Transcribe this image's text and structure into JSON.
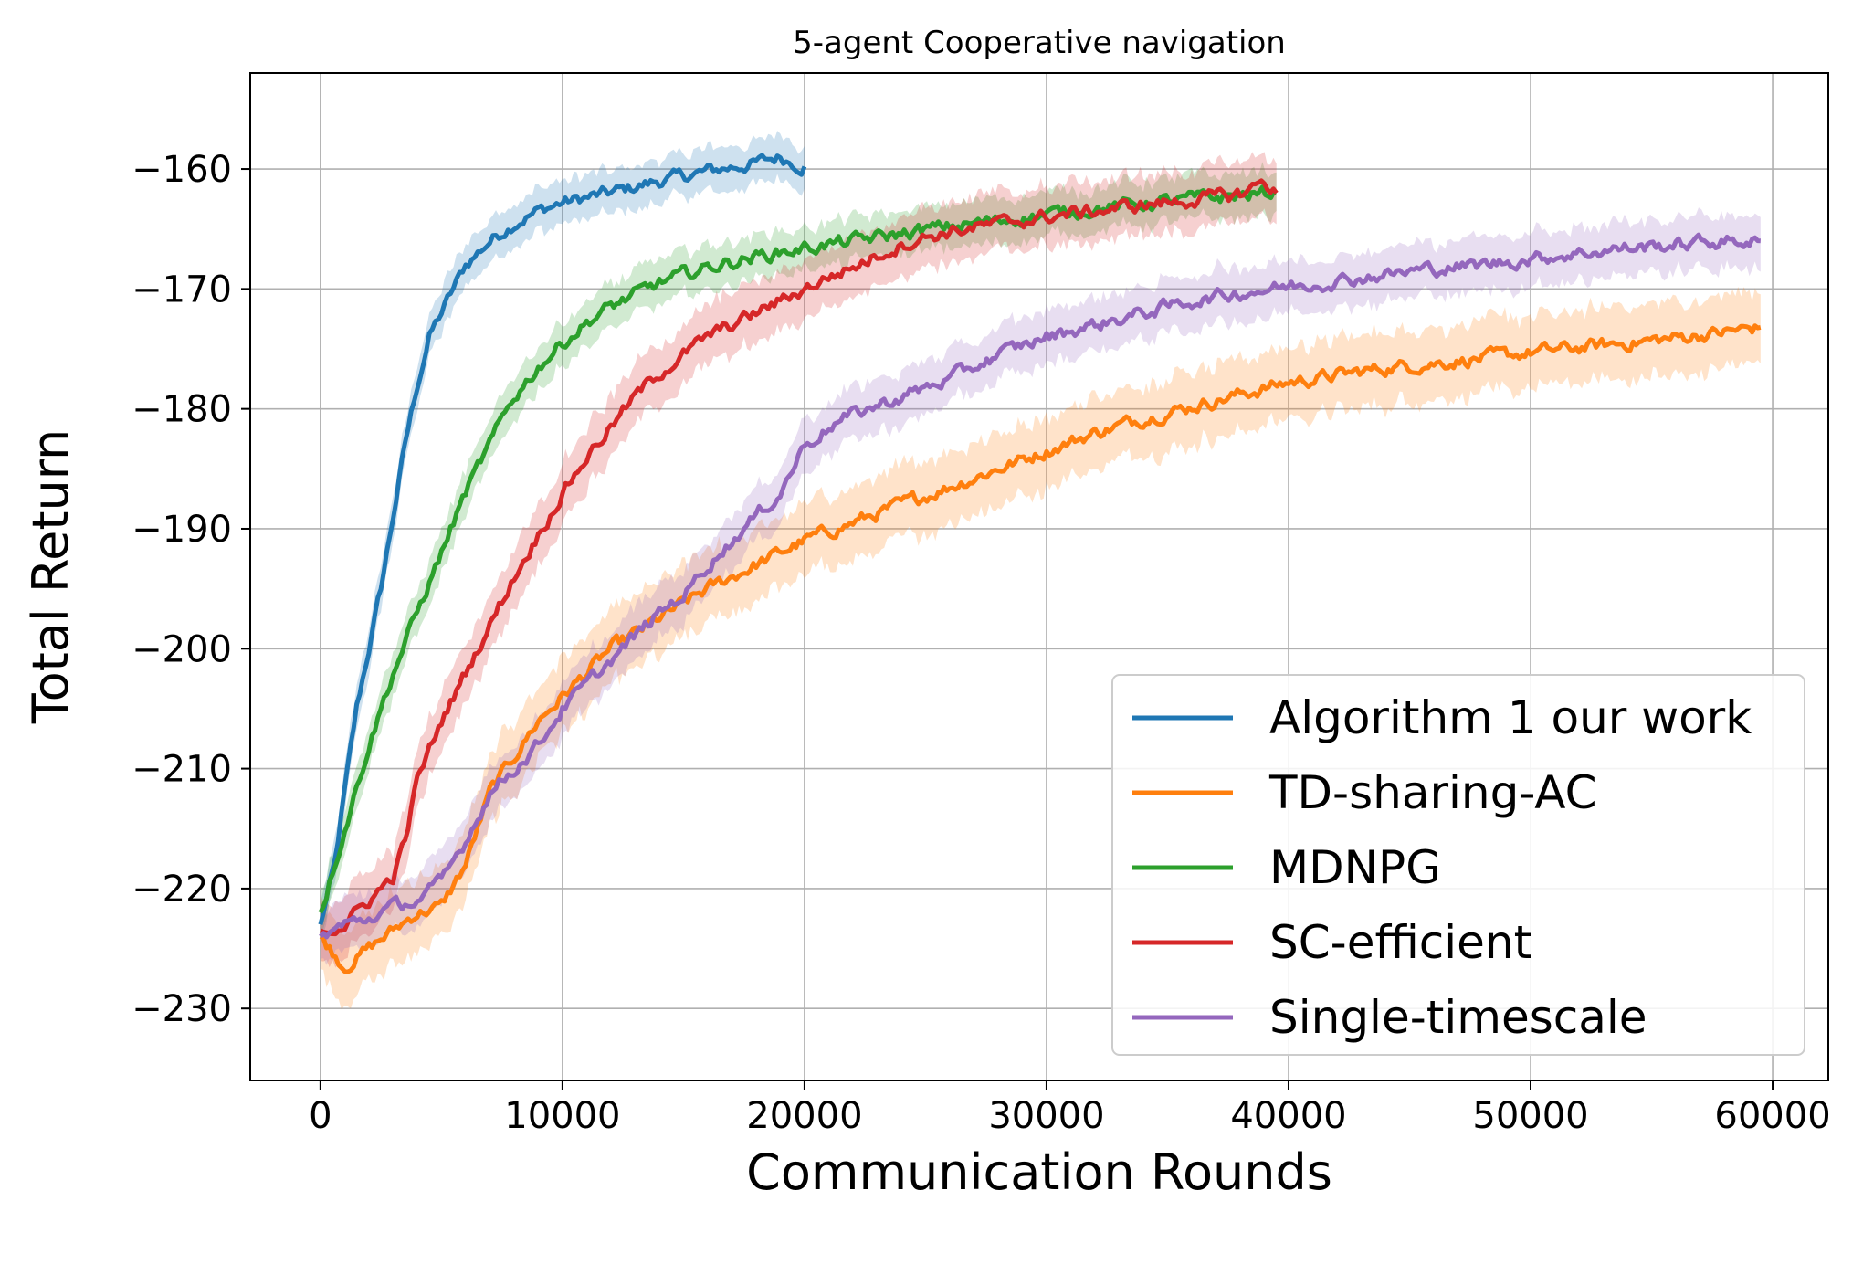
{
  "chart_data": {
    "type": "line",
    "title": "5-agent Cooperative navigation",
    "xlabel": "Communication Rounds",
    "ylabel": "Total Return",
    "xlim": [
      -2900,
      62300
    ],
    "ylim": [
      -236,
      -152
    ],
    "xticks": [
      0,
      10000,
      20000,
      30000,
      40000,
      50000,
      60000
    ],
    "xtick_labels": [
      "0",
      "10000",
      "20000",
      "30000",
      "40000",
      "50000",
      "60000"
    ],
    "yticks": [
      -230,
      -220,
      -210,
      -200,
      -190,
      -180,
      -170,
      -160
    ],
    "ytick_labels": [
      "−230",
      "−220",
      "−210",
      "−200",
      "−190",
      "−180",
      "−170",
      "−160"
    ],
    "grid": true,
    "legend_position": "lower-right",
    "series": [
      {
        "name": "Algorithm 1 our work",
        "color": "#1f77b4",
        "band": 1.8,
        "points": [
          [
            0,
            -223
          ],
          [
            600,
            -218
          ],
          [
            1000,
            -212
          ],
          [
            1500,
            -205
          ],
          [
            2000,
            -200
          ],
          [
            2500,
            -195
          ],
          [
            3000,
            -189
          ],
          [
            3500,
            -183
          ],
          [
            4000,
            -178
          ],
          [
            4500,
            -174
          ],
          [
            5000,
            -172
          ],
          [
            6000,
            -168
          ],
          [
            7000,
            -166
          ],
          [
            8000,
            -164.5
          ],
          [
            9000,
            -163.5
          ],
          [
            10000,
            -162.8
          ],
          [
            12000,
            -162
          ],
          [
            14000,
            -161
          ],
          [
            16000,
            -160.2
          ],
          [
            18000,
            -159.5
          ],
          [
            19000,
            -159
          ],
          [
            20000,
            -159.8
          ]
        ]
      },
      {
        "name": "TD-sharing-AC",
        "color": "#ff7f0e",
        "band": 3,
        "points": [
          [
            0,
            -224
          ],
          [
            1000,
            -226.5
          ],
          [
            2000,
            -225
          ],
          [
            3000,
            -223.5
          ],
          [
            4000,
            -222
          ],
          [
            5000,
            -221.5
          ],
          [
            6000,
            -218
          ],
          [
            7000,
            -212
          ],
          [
            8000,
            -209
          ],
          [
            9000,
            -206
          ],
          [
            10000,
            -204
          ],
          [
            12000,
            -200
          ],
          [
            14000,
            -197.5
          ],
          [
            16000,
            -195
          ],
          [
            18000,
            -193
          ],
          [
            20000,
            -191
          ],
          [
            22000,
            -189.5
          ],
          [
            24000,
            -188
          ],
          [
            26000,
            -186.5
          ],
          [
            28000,
            -185
          ],
          [
            30000,
            -183.5
          ],
          [
            32000,
            -182
          ],
          [
            34000,
            -180.8
          ],
          [
            36000,
            -179.8
          ],
          [
            38000,
            -178.8
          ],
          [
            40000,
            -177.8
          ],
          [
            42000,
            -177.2
          ],
          [
            44000,
            -176.6
          ],
          [
            46000,
            -176.2
          ],
          [
            48000,
            -175.8
          ],
          [
            50000,
            -175.3
          ],
          [
            52000,
            -174.9
          ],
          [
            54000,
            -174.5
          ],
          [
            56000,
            -174.1
          ],
          [
            58000,
            -173.6
          ],
          [
            59500,
            -173.2
          ]
        ]
      },
      {
        "name": "MDNPG",
        "color": "#2ca02c",
        "band": 1.8,
        "points": [
          [
            0,
            -222
          ],
          [
            1000,
            -215
          ],
          [
            2000,
            -208
          ],
          [
            3000,
            -202
          ],
          [
            4000,
            -197
          ],
          [
            5000,
            -192
          ],
          [
            6000,
            -187
          ],
          [
            7000,
            -183
          ],
          [
            8000,
            -179
          ],
          [
            9000,
            -176.5
          ],
          [
            10000,
            -174.5
          ],
          [
            11000,
            -172.8
          ],
          [
            12000,
            -171.5
          ],
          [
            14000,
            -169.5
          ],
          [
            16000,
            -168.2
          ],
          [
            18000,
            -167.3
          ],
          [
            20000,
            -166.6
          ],
          [
            22000,
            -166
          ],
          [
            24000,
            -165.4
          ],
          [
            26000,
            -164.8
          ],
          [
            28000,
            -164.3
          ],
          [
            30000,
            -163.8
          ],
          [
            32000,
            -163.3
          ],
          [
            34000,
            -162.9
          ],
          [
            36000,
            -162.5
          ],
          [
            38000,
            -162.2
          ],
          [
            39500,
            -162
          ]
        ]
      },
      {
        "name": "SC-efficient",
        "color": "#d62728",
        "band": 2.5,
        "points": [
          [
            0,
            -223.5
          ],
          [
            1000,
            -223
          ],
          [
            2000,
            -221
          ],
          [
            3000,
            -219
          ],
          [
            3500,
            -216
          ],
          [
            4000,
            -211
          ],
          [
            5000,
            -206
          ],
          [
            6000,
            -202
          ],
          [
            7000,
            -198
          ],
          [
            8000,
            -194
          ],
          [
            9000,
            -190.5
          ],
          [
            10000,
            -187
          ],
          [
            11000,
            -184
          ],
          [
            12000,
            -181.5
          ],
          [
            13000,
            -179
          ],
          [
            14000,
            -177
          ],
          [
            15000,
            -175.5
          ],
          [
            16000,
            -174
          ],
          [
            17000,
            -173
          ],
          [
            18000,
            -172
          ],
          [
            19000,
            -171
          ],
          [
            20000,
            -170
          ],
          [
            21000,
            -169
          ],
          [
            22000,
            -168.2
          ],
          [
            23000,
            -167.2
          ],
          [
            24000,
            -166.3
          ],
          [
            25000,
            -165.7
          ],
          [
            26000,
            -165.2
          ],
          [
            28000,
            -164.6
          ],
          [
            30000,
            -164
          ],
          [
            32000,
            -163.5
          ],
          [
            34000,
            -163
          ],
          [
            36000,
            -162.6
          ],
          [
            38000,
            -162.1
          ],
          [
            39000,
            -161
          ],
          [
            39500,
            -162
          ]
        ]
      },
      {
        "name": "Single-timescale",
        "color": "#9467bd",
        "band": 2.2,
        "points": [
          [
            0,
            -224
          ],
          [
            1000,
            -223
          ],
          [
            2000,
            -222.5
          ],
          [
            3000,
            -221.5
          ],
          [
            4000,
            -221
          ],
          [
            5000,
            -219.5
          ],
          [
            6000,
            -216
          ],
          [
            7000,
            -212
          ],
          [
            8000,
            -210
          ],
          [
            9000,
            -208
          ],
          [
            10000,
            -205
          ],
          [
            11000,
            -203
          ],
          [
            12000,
            -201
          ],
          [
            14000,
            -197
          ],
          [
            15000,
            -195.5
          ],
          [
            16000,
            -193
          ],
          [
            17000,
            -191
          ],
          [
            18000,
            -189
          ],
          [
            19000,
            -187
          ],
          [
            20000,
            -183
          ],
          [
            21000,
            -181.5
          ],
          [
            22000,
            -180.5
          ],
          [
            24000,
            -179
          ],
          [
            26000,
            -177.5
          ],
          [
            28000,
            -175.5
          ],
          [
            30000,
            -174
          ],
          [
            32000,
            -173
          ],
          [
            34000,
            -172
          ],
          [
            36000,
            -171
          ],
          [
            38000,
            -170.3
          ],
          [
            40000,
            -169.8
          ],
          [
            42000,
            -169.3
          ],
          [
            44000,
            -168.8
          ],
          [
            46000,
            -168.3
          ],
          [
            48000,
            -168
          ],
          [
            50000,
            -167.5
          ],
          [
            52000,
            -167
          ],
          [
            54000,
            -166.6
          ],
          [
            56000,
            -166.3
          ],
          [
            58000,
            -166
          ],
          [
            59500,
            -166
          ]
        ]
      }
    ]
  }
}
